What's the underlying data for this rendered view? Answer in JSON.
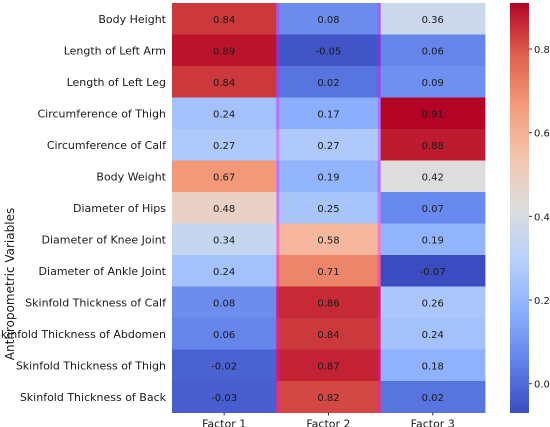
{
  "chart_data": {
    "type": "heatmap",
    "ylabel": "Anthropometric Variables",
    "columns": [
      "Factor 1",
      "Factor 2",
      "Factor 3"
    ],
    "rows": [
      "Body Height",
      "Length of Left Arm",
      "Length of Left Leg",
      "Circumference of Thigh",
      "Circumference of Calf",
      "Body Weight",
      "Diameter of Hips",
      "Diameter of Knee Joint",
      "Diameter of Ankle Joint",
      "Skinfold Thickness of Calf",
      "Skinfold Thickness of Abdomen",
      "Skinfold Thickness of Thigh",
      "Skinfold Thickness of Back"
    ],
    "values": [
      [
        0.84,
        0.08,
        0.36
      ],
      [
        0.89,
        -0.05,
        0.06
      ],
      [
        0.84,
        0.02,
        0.09
      ],
      [
        0.24,
        0.17,
        0.91
      ],
      [
        0.27,
        0.27,
        0.88
      ],
      [
        0.67,
        0.19,
        0.42
      ],
      [
        0.48,
        0.25,
        0.07
      ],
      [
        0.34,
        0.58,
        0.19
      ],
      [
        0.24,
        0.71,
        -0.07
      ],
      [
        0.08,
        0.86,
        0.26
      ],
      [
        0.06,
        0.84,
        0.24
      ],
      [
        -0.02,
        0.87,
        0.18
      ],
      [
        -0.03,
        0.82,
        0.02
      ]
    ],
    "value_labels": [
      [
        "0.84",
        "0.08",
        "0.36"
      ],
      [
        "0.89",
        "-0.05",
        "0.06"
      ],
      [
        "0.84",
        "0.02",
        "0.09"
      ],
      [
        "0.24",
        "0.17",
        "0.91"
      ],
      [
        "0.27",
        "0.27",
        "0.88"
      ],
      [
        "0.67",
        "0.19",
        "0.42"
      ],
      [
        "0.48",
        "0.25",
        "0.07"
      ],
      [
        "0.34",
        "0.58",
        "0.19"
      ],
      [
        "0.24",
        "0.71",
        "-0.07"
      ],
      [
        "0.08",
        "0.86",
        "0.26"
      ],
      [
        "0.06",
        "0.84",
        "0.24"
      ],
      [
        "-0.02",
        "0.87",
        "0.18"
      ],
      [
        "-0.03",
        "0.82",
        "0.02"
      ]
    ],
    "colorscale": "coolwarm",
    "vmin": -0.07,
    "vmax": 0.91,
    "colorbar_ticks": [
      0.0,
      0.2,
      0.4,
      0.6,
      0.8
    ],
    "colorbar_tick_labels": [
      "0.0",
      "0.2",
      "0.4",
      "0.6",
      "0.8"
    ],
    "colors": {
      "cold": "#3b4cc0",
      "neutral": "#dddddd",
      "warm": "#b40426",
      "highlight_column_edge": "#ff00ff"
    }
  }
}
